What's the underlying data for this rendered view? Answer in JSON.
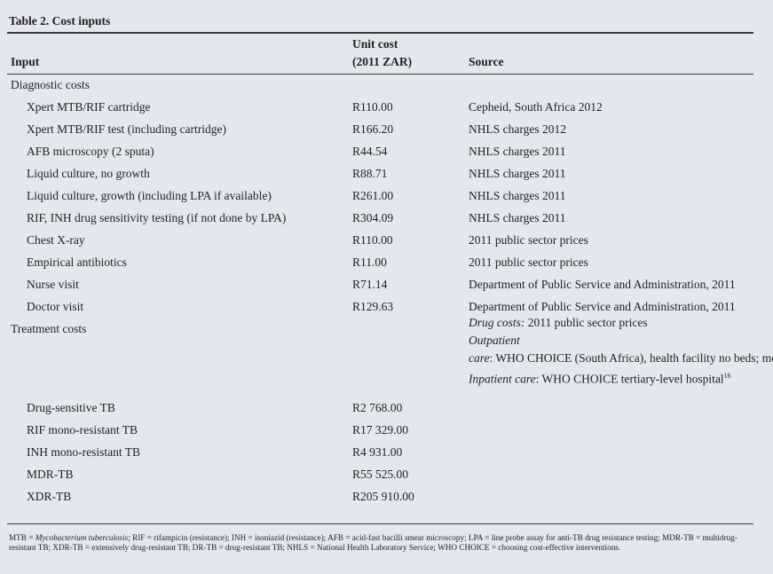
{
  "title": "Table 2. Cost inputs",
  "header": {
    "input": "Input",
    "unit_cost": [
      "Unit cost",
      "(2011 ZAR)"
    ],
    "source": "Source"
  },
  "sections": [
    {
      "label": "Diagnostic costs",
      "rows": [
        {
          "input": "Xpert MTB/RIF cartridge",
          "unit_cost": "R110.00",
          "source": "Cepheid, South Africa 2012"
        },
        {
          "input": "Xpert MTB/RIF test (including cartridge)",
          "unit_cost": "R166.20",
          "source": "NHLS charges 2012"
        },
        {
          "input": "AFB microscopy (2 sputa)",
          "unit_cost": "R44.54",
          "source": "NHLS charges 2011"
        },
        {
          "input": "Liquid culture, no growth",
          "unit_cost": "R88.71",
          "source": "NHLS charges 2011"
        },
        {
          "input": "Liquid culture, growth (including LPA if available)",
          "unit_cost": "R261.00",
          "source": "NHLS charges 2011"
        },
        {
          "input": "RIF, INH drug sensitivity testing (if not done by LPA)",
          "unit_cost": "R304.09",
          "source": "NHLS charges 2011"
        },
        {
          "input": "Chest X-ray",
          "unit_cost": "R110.00",
          "source": "2011 public sector prices"
        },
        {
          "input": "Empirical antibiotics",
          "unit_cost": "R11.00",
          "source": "2011 public sector prices"
        },
        {
          "input": "Nurse visit",
          "unit_cost": "R71.14",
          "source": "Department of Public Service and Administration, 2011"
        },
        {
          "input": "Doctor visit",
          "unit_cost": "R129.63",
          "source": "Department of Public Service and Administration, 2011"
        }
      ]
    },
    {
      "label": "Treatment costs",
      "source_notes": [
        {
          "label": "Drug costs:",
          "text": " 2011 public sector prices"
        },
        {
          "label": "Outpatient care",
          "text": ": WHO CHOICE (South Africa), health facility no beds; monthly outpatient secondary-level hospital for DR-TB"
        },
        {
          "label": "Inpatient care",
          "text": ": WHO CHOICE tertiary-level hospital",
          "sup": "16"
        }
      ],
      "rows": [
        {
          "input": "Drug-sensitive TB",
          "unit_cost": "R2 768.00"
        },
        {
          "input": "RIF mono-resistant TB",
          "unit_cost": "R17 329.00"
        },
        {
          "input": "INH mono-resistant TB",
          "unit_cost": "R4 931.00"
        },
        {
          "input": "MDR-TB",
          "unit_cost": "R55 525.00"
        },
        {
          "input": "XDR-TB",
          "unit_cost": "R205 910.00"
        }
      ]
    }
  ],
  "footnote": [
    "MTB = ",
    "Mycobacterium tuberculosis",
    "; RIF = rifampicin (resistance); INH = isoniazid (resistance); AFB = acid-fast bacilli smear microscopy; LPA = line probe assay for anti-TB drug resistance testing; MDR-TB = multidrug-resistant TB; XDR-TB = extensively drug-resistant TB; DR-TB = drug-resistant TB; NHLS = National Health Laboratory Service; WHO CHOICE = choosing cost-effective interventions."
  ]
}
